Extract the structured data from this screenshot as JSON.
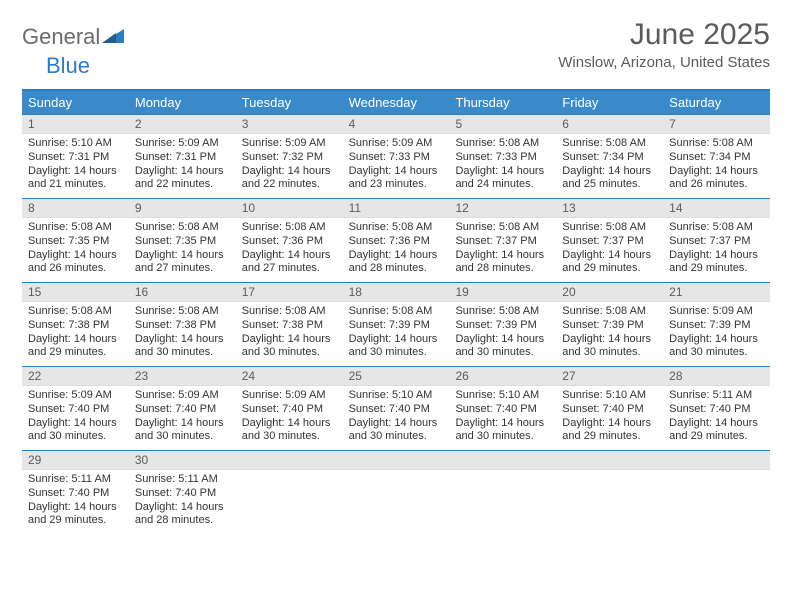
{
  "logo": {
    "word1": "General",
    "word2": "Blue"
  },
  "title": "June 2025",
  "location": "Winslow, Arizona, United States",
  "colors": {
    "header_bg": "#3a8ac9",
    "header_text": "#ffffff",
    "rule": "#2f7bbf",
    "daynum_bg": "#e6e6e6",
    "daynum_text": "#5b5b5b",
    "body_text": "#333333",
    "title_text": "#5b5b5b",
    "logo_gray": "#6b6b6b",
    "logo_blue": "#2f7bbf"
  },
  "weekdays": [
    "Sunday",
    "Monday",
    "Tuesday",
    "Wednesday",
    "Thursday",
    "Friday",
    "Saturday"
  ],
  "weeks": [
    [
      {
        "n": "1",
        "sr": "Sunrise: 5:10 AM",
        "ss": "Sunset: 7:31 PM",
        "dl": "Daylight: 14 hours and 21 minutes."
      },
      {
        "n": "2",
        "sr": "Sunrise: 5:09 AM",
        "ss": "Sunset: 7:31 PM",
        "dl": "Daylight: 14 hours and 22 minutes."
      },
      {
        "n": "3",
        "sr": "Sunrise: 5:09 AM",
        "ss": "Sunset: 7:32 PM",
        "dl": "Daylight: 14 hours and 22 minutes."
      },
      {
        "n": "4",
        "sr": "Sunrise: 5:09 AM",
        "ss": "Sunset: 7:33 PM",
        "dl": "Daylight: 14 hours and 23 minutes."
      },
      {
        "n": "5",
        "sr": "Sunrise: 5:08 AM",
        "ss": "Sunset: 7:33 PM",
        "dl": "Daylight: 14 hours and 24 minutes."
      },
      {
        "n": "6",
        "sr": "Sunrise: 5:08 AM",
        "ss": "Sunset: 7:34 PM",
        "dl": "Daylight: 14 hours and 25 minutes."
      },
      {
        "n": "7",
        "sr": "Sunrise: 5:08 AM",
        "ss": "Sunset: 7:34 PM",
        "dl": "Daylight: 14 hours and 26 minutes."
      }
    ],
    [
      {
        "n": "8",
        "sr": "Sunrise: 5:08 AM",
        "ss": "Sunset: 7:35 PM",
        "dl": "Daylight: 14 hours and 26 minutes."
      },
      {
        "n": "9",
        "sr": "Sunrise: 5:08 AM",
        "ss": "Sunset: 7:35 PM",
        "dl": "Daylight: 14 hours and 27 minutes."
      },
      {
        "n": "10",
        "sr": "Sunrise: 5:08 AM",
        "ss": "Sunset: 7:36 PM",
        "dl": "Daylight: 14 hours and 27 minutes."
      },
      {
        "n": "11",
        "sr": "Sunrise: 5:08 AM",
        "ss": "Sunset: 7:36 PM",
        "dl": "Daylight: 14 hours and 28 minutes."
      },
      {
        "n": "12",
        "sr": "Sunrise: 5:08 AM",
        "ss": "Sunset: 7:37 PM",
        "dl": "Daylight: 14 hours and 28 minutes."
      },
      {
        "n": "13",
        "sr": "Sunrise: 5:08 AM",
        "ss": "Sunset: 7:37 PM",
        "dl": "Daylight: 14 hours and 29 minutes."
      },
      {
        "n": "14",
        "sr": "Sunrise: 5:08 AM",
        "ss": "Sunset: 7:37 PM",
        "dl": "Daylight: 14 hours and 29 minutes."
      }
    ],
    [
      {
        "n": "15",
        "sr": "Sunrise: 5:08 AM",
        "ss": "Sunset: 7:38 PM",
        "dl": "Daylight: 14 hours and 29 minutes."
      },
      {
        "n": "16",
        "sr": "Sunrise: 5:08 AM",
        "ss": "Sunset: 7:38 PM",
        "dl": "Daylight: 14 hours and 30 minutes."
      },
      {
        "n": "17",
        "sr": "Sunrise: 5:08 AM",
        "ss": "Sunset: 7:38 PM",
        "dl": "Daylight: 14 hours and 30 minutes."
      },
      {
        "n": "18",
        "sr": "Sunrise: 5:08 AM",
        "ss": "Sunset: 7:39 PM",
        "dl": "Daylight: 14 hours and 30 minutes."
      },
      {
        "n": "19",
        "sr": "Sunrise: 5:08 AM",
        "ss": "Sunset: 7:39 PM",
        "dl": "Daylight: 14 hours and 30 minutes."
      },
      {
        "n": "20",
        "sr": "Sunrise: 5:08 AM",
        "ss": "Sunset: 7:39 PM",
        "dl": "Daylight: 14 hours and 30 minutes."
      },
      {
        "n": "21",
        "sr": "Sunrise: 5:09 AM",
        "ss": "Sunset: 7:39 PM",
        "dl": "Daylight: 14 hours and 30 minutes."
      }
    ],
    [
      {
        "n": "22",
        "sr": "Sunrise: 5:09 AM",
        "ss": "Sunset: 7:40 PM",
        "dl": "Daylight: 14 hours and 30 minutes."
      },
      {
        "n": "23",
        "sr": "Sunrise: 5:09 AM",
        "ss": "Sunset: 7:40 PM",
        "dl": "Daylight: 14 hours and 30 minutes."
      },
      {
        "n": "24",
        "sr": "Sunrise: 5:09 AM",
        "ss": "Sunset: 7:40 PM",
        "dl": "Daylight: 14 hours and 30 minutes."
      },
      {
        "n": "25",
        "sr": "Sunrise: 5:10 AM",
        "ss": "Sunset: 7:40 PM",
        "dl": "Daylight: 14 hours and 30 minutes."
      },
      {
        "n": "26",
        "sr": "Sunrise: 5:10 AM",
        "ss": "Sunset: 7:40 PM",
        "dl": "Daylight: 14 hours and 30 minutes."
      },
      {
        "n": "27",
        "sr": "Sunrise: 5:10 AM",
        "ss": "Sunset: 7:40 PM",
        "dl": "Daylight: 14 hours and 29 minutes."
      },
      {
        "n": "28",
        "sr": "Sunrise: 5:11 AM",
        "ss": "Sunset: 7:40 PM",
        "dl": "Daylight: 14 hours and 29 minutes."
      }
    ],
    [
      {
        "n": "29",
        "sr": "Sunrise: 5:11 AM",
        "ss": "Sunset: 7:40 PM",
        "dl": "Daylight: 14 hours and 29 minutes."
      },
      {
        "n": "30",
        "sr": "Sunrise: 5:11 AM",
        "ss": "Sunset: 7:40 PM",
        "dl": "Daylight: 14 hours and 28 minutes."
      },
      {
        "empty": true
      },
      {
        "empty": true
      },
      {
        "empty": true
      },
      {
        "empty": true
      },
      {
        "empty": true
      }
    ]
  ]
}
